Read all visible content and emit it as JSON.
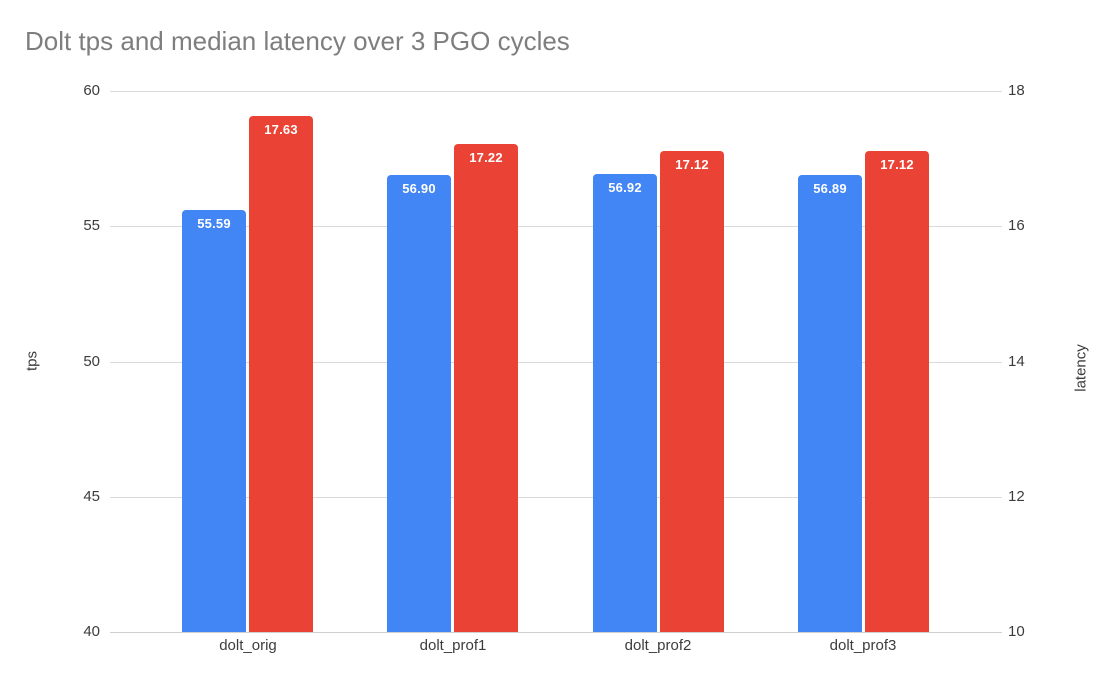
{
  "chart_data": {
    "type": "bar",
    "title": "Dolt tps and median latency over 3 PGO cycles",
    "categories": [
      "dolt_orig",
      "dolt_prof1",
      "dolt_prof2",
      "dolt_prof3"
    ],
    "series": [
      {
        "name": "tps",
        "axis": "left",
        "color": "#4285f4",
        "values": [
          55.59,
          56.9,
          56.92,
          56.89
        ],
        "labels": [
          "55.59",
          "56.90",
          "56.92",
          "56.89"
        ]
      },
      {
        "name": "latency",
        "axis": "right",
        "color": "#ea4335",
        "values": [
          17.63,
          17.22,
          17.12,
          17.12
        ],
        "labels": [
          "17.63",
          "17.22",
          "17.12",
          "17.12"
        ]
      }
    ],
    "left_axis": {
      "title": "tps",
      "min": 40,
      "max": 60,
      "ticks": [
        60,
        55,
        50,
        45,
        40
      ]
    },
    "right_axis": {
      "title": "latency",
      "min": 10,
      "max": 18,
      "ticks": [
        18,
        16,
        14,
        12,
        10
      ]
    },
    "grid": true,
    "legend": "none",
    "colors": {
      "bar_tps": "#4285f4",
      "bar_latency": "#ea4335",
      "grid": "#dadada",
      "baseline": "#cfcfcf",
      "tick_text": "#3c3c3c",
      "title_text": "#7e7e7e",
      "bar_label_text": "#ffffff",
      "background": "#ffffff"
    }
  }
}
